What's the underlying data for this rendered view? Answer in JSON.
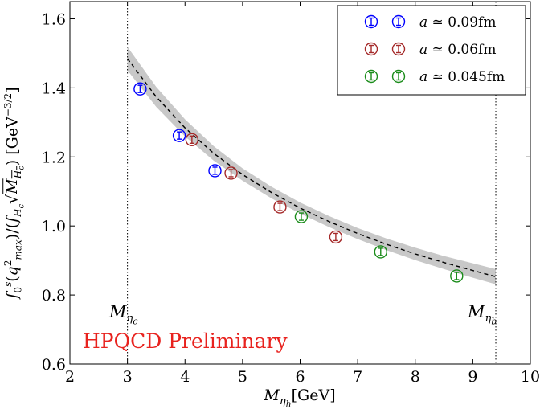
{
  "chart_data": {
    "type": "scatter",
    "xlabel": "M_{ηh}[GeV]",
    "ylabel": "f₀ˢ(q²max)/(f_Hc √M_Hc) [GeV⁻³ᐟ²]",
    "xlim": [
      2,
      10
    ],
    "ylim": [
      0.6,
      1.65
    ],
    "x_ticks": [
      "2",
      "3",
      "4",
      "5",
      "6",
      "7",
      "8",
      "9",
      "10"
    ],
    "y_ticks": [
      "0.6",
      "0.8",
      "1.0",
      "1.2",
      "1.4",
      "1.6"
    ],
    "legend_position": "top-right",
    "series": [
      {
        "name": "a ≃ 0.09fm",
        "color": "#0000ff",
        "points": [
          {
            "x": 3.22,
            "y": 1.397
          },
          {
            "x": 3.9,
            "y": 1.262
          },
          {
            "x": 4.52,
            "y": 1.16
          }
        ]
      },
      {
        "name": "a ≃ 0.06fm",
        "color": "#a52a2a",
        "points": [
          {
            "x": 4.12,
            "y": 1.25
          },
          {
            "x": 4.8,
            "y": 1.153
          },
          {
            "x": 5.65,
            "y": 1.055
          },
          {
            "x": 6.62,
            "y": 0.968
          }
        ]
      },
      {
        "name": "a ≃ 0.045fm",
        "color": "#1a8c1a",
        "points": [
          {
            "x": 6.02,
            "y": 1.027
          },
          {
            "x": 7.4,
            "y": 0.925
          },
          {
            "x": 8.72,
            "y": 0.855
          }
        ]
      }
    ],
    "fit_curve": {
      "x": [
        3.0,
        3.5,
        4.0,
        4.5,
        5.0,
        5.5,
        6.0,
        6.5,
        7.0,
        7.5,
        8.0,
        8.5,
        9.0,
        9.4
      ],
      "y": [
        1.485,
        1.374,
        1.284,
        1.21,
        1.149,
        1.097,
        1.052,
        1.013,
        0.978,
        0.947,
        0.919,
        0.894,
        0.871,
        0.853
      ],
      "band_halfwidth": [
        0.034,
        0.029,
        0.025,
        0.021,
        0.018,
        0.017,
        0.016,
        0.016,
        0.016,
        0.017,
        0.018,
        0.019,
        0.021,
        0.022
      ]
    },
    "vertical_lines": [
      {
        "x": 3.0,
        "label": "M",
        "sub": "ηc"
      },
      {
        "x": 9.4,
        "label": "M",
        "sub": "ηb"
      }
    ]
  },
  "annotation": "HPQCD Preliminary"
}
